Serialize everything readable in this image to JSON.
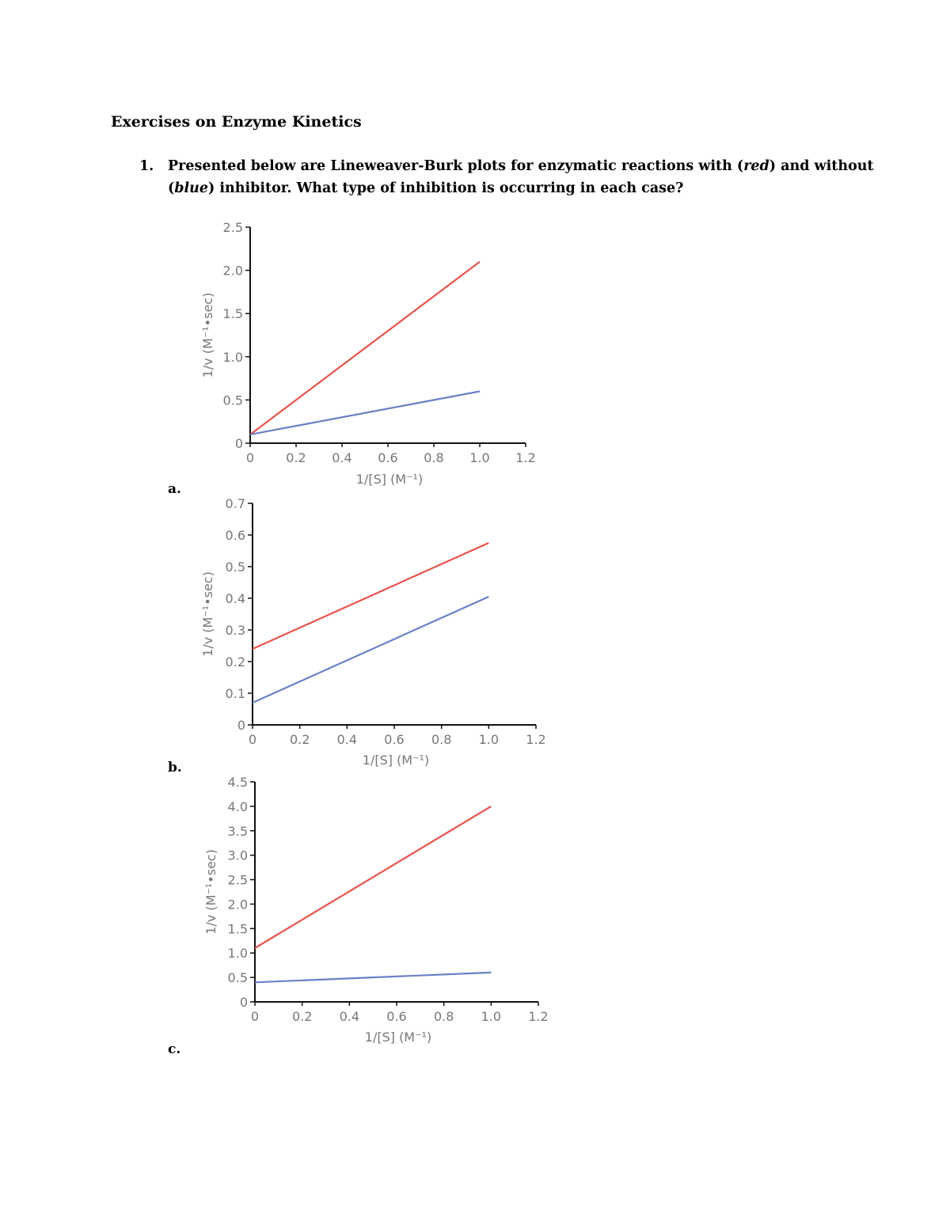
{
  "document": {
    "title": "Exercises on Enzyme Kinetics",
    "question": {
      "number": "1.",
      "line1_pre": "Presented below are Lineweaver-Burk plots for enzymatic reactions with (",
      "line1_red": "red",
      "line1_post": ") and without",
      "line2_pre": "(",
      "line2_blue": "blue",
      "line2_post": ") inhibitor. What type of inhibition is occurring in each case?"
    }
  },
  "colors": {
    "with_inhibitor": "#e8534a",
    "without_inhibitor": "#6a80c8",
    "axis": "#111111",
    "tick_text": "#777777"
  },
  "chart_data": [
    {
      "type": "line",
      "part_label": "a.",
      "xlabel": "1/[S] (M⁻¹)",
      "ylabel": "1/v (M⁻¹•sec)",
      "xlim": [
        0,
        1.2
      ],
      "ylim": [
        0,
        2.5
      ],
      "xticks": [
        "0",
        "0.2",
        "0.4",
        "0.6",
        "0.8",
        "1.0",
        "1.2"
      ],
      "yticks": [
        "0",
        "0.5",
        "1.0",
        "1.5",
        "2.0",
        "2.5"
      ],
      "grid": false,
      "series": [
        {
          "color": "#e8534a",
          "x": [
            0,
            1.0
          ],
          "y": [
            0.1,
            2.1
          ]
        },
        {
          "color": "#6a80c8",
          "x": [
            0,
            1.0
          ],
          "y": [
            0.1,
            0.6
          ]
        }
      ]
    },
    {
      "type": "line",
      "part_label": "b.",
      "xlabel": "1/[S] (M⁻¹)",
      "ylabel": "1/v (M⁻¹•sec)",
      "xlim": [
        0,
        1.2
      ],
      "ylim": [
        0,
        0.7
      ],
      "xticks": [
        "0",
        "0.2",
        "0.4",
        "0.6",
        "0.8",
        "1.0",
        "1.2"
      ],
      "yticks": [
        "0",
        "0.1",
        "0.2",
        "0.3",
        "0.4",
        "0.5",
        "0.6",
        "0.7"
      ],
      "grid": false,
      "series": [
        {
          "color": "#e8534a",
          "x": [
            0,
            1.0
          ],
          "y": [
            0.24,
            0.575
          ]
        },
        {
          "color": "#6a80c8",
          "x": [
            0,
            1.0
          ],
          "y": [
            0.07,
            0.405
          ]
        }
      ]
    },
    {
      "type": "line",
      "part_label": "c.",
      "xlabel": "1/[S] (M⁻¹)",
      "ylabel": "1/v (M⁻¹•sec)",
      "xlim": [
        0,
        1.2
      ],
      "ylim": [
        0,
        4.5
      ],
      "xticks": [
        "0",
        "0.2",
        "0.4",
        "0.6",
        "0.8",
        "1.0",
        "1.2"
      ],
      "yticks": [
        "0",
        "0.5",
        "1.0",
        "1.5",
        "2.0",
        "2.5",
        "3.0",
        "3.5",
        "4.0",
        "4.5"
      ],
      "grid": false,
      "series": [
        {
          "color": "#e8534a",
          "x": [
            0,
            1.0
          ],
          "y": [
            1.1,
            4.0
          ]
        },
        {
          "color": "#6a80c8",
          "x": [
            0,
            1.0
          ],
          "y": [
            0.4,
            0.6
          ]
        }
      ]
    }
  ]
}
